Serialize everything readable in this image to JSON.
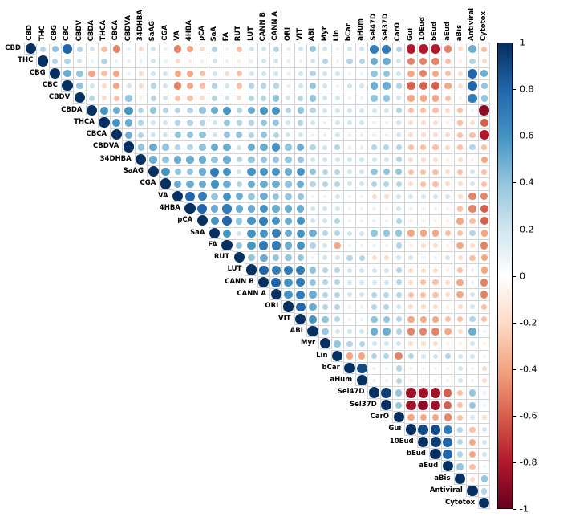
{
  "chart_data": {
    "type": "heatmap",
    "subtype": "correlation-matrix-upper-triangle",
    "title": "",
    "legend_position": "right",
    "grid": true,
    "variables": [
      "CBD",
      "THC",
      "CBG",
      "CBC",
      "CBDV",
      "CBDA",
      "THCA",
      "CBCA",
      "CBDVA",
      "34DHBA",
      "SaAG",
      "CGA",
      "VA",
      "4HBA",
      "pCA",
      "SaA",
      "FA",
      "RUT",
      "LUT",
      "CANN B",
      "CANN A",
      "ORI",
      "VIT",
      "ABI",
      "Myr",
      "Lin",
      "bCar",
      "aHum",
      "Sel47D",
      "Sel37D",
      "CarO",
      "Gui",
      "10Eud",
      "bEud",
      "aEud",
      "aBis",
      "Antiviral",
      "Cytotox"
    ],
    "matrix_upper": [
      [
        1,
        0.3,
        0.4,
        0.8,
        0.3,
        0.2,
        -0.3,
        -0.5,
        0.1,
        -0.2,
        0.2,
        0.1,
        -0.5,
        -0.4,
        -0.2,
        0.3,
        0.1,
        -0.3,
        0.2,
        0.2,
        0.3,
        0.1,
        0.2,
        0.4,
        0.2,
        0.1,
        0.2,
        0.2,
        0.7,
        0.7,
        0.3,
        -0.8,
        -0.8,
        -0.8,
        -0.5,
        -0.2,
        0.5,
        -0.3
      ],
      [
        1,
        0.3,
        0.3,
        0.2,
        0.1,
        0.3,
        0.1,
        0.1,
        0.1,
        0.2,
        0.1,
        -0.2,
        -0.1,
        0.1,
        0.2,
        0.1,
        -0.1,
        0.1,
        0.2,
        0.2,
        0.1,
        0.1,
        0.2,
        0.3,
        0.1,
        0.3,
        0.3,
        0.5,
        0.5,
        0.2,
        -0.5,
        -0.5,
        -0.5,
        -0.3,
        -0.1,
        0.3,
        -0.2
      ],
      [
        1,
        0.5,
        0.4,
        -0.4,
        -0.3,
        -0.4,
        0.1,
        -0.2,
        0.2,
        0.2,
        -0.4,
        -0.4,
        -0.3,
        0.2,
        -0.2,
        -0.3,
        0.2,
        0.2,
        0.2,
        0.1,
        0.2,
        0.3,
        0.2,
        0.2,
        0.1,
        0.1,
        0.4,
        0.4,
        0.2,
        -0.4,
        -0.5,
        -0.4,
        -0.3,
        -0.2,
        0.8,
        0.5
      ],
      [
        1,
        0.4,
        0.2,
        -0.2,
        -0.4,
        0.2,
        -0.2,
        0.3,
        0.2,
        -0.5,
        -0.4,
        -0.3,
        0.3,
        0.2,
        -0.3,
        0.3,
        0.3,
        0.3,
        0.1,
        0.2,
        0.4,
        0.2,
        0.1,
        0.2,
        0.2,
        0.5,
        0.5,
        0.3,
        -0.6,
        -0.6,
        -0.6,
        -0.4,
        -0.2,
        0.8,
        0.4
      ],
      [
        1,
        0.3,
        -0.2,
        -0.3,
        0.4,
        -0.1,
        0.3,
        0.2,
        -0.3,
        -0.3,
        -0.2,
        0.3,
        0.2,
        -0.2,
        0.3,
        0.3,
        0.4,
        0.2,
        0.3,
        0.4,
        0.2,
        0.2,
        0.1,
        0.1,
        0.4,
        0.4,
        0.2,
        -0.4,
        -0.4,
        -0.4,
        -0.3,
        -0.1,
        0.7,
        0.4
      ],
      [
        1,
        0.6,
        0.5,
        0.6,
        0.3,
        0.4,
        0.3,
        0.3,
        0.3,
        0.4,
        0.5,
        0.6,
        0.3,
        0.5,
        0.6,
        0.6,
        0.3,
        0.4,
        0.3,
        0.2,
        0.2,
        0.2,
        0.2,
        0.2,
        0.2,
        0.3,
        -0.3,
        -0.3,
        -0.3,
        -0.2,
        -0.3,
        0.1,
        -0.9
      ],
      [
        1,
        0.6,
        0.5,
        0.3,
        0.2,
        0.2,
        0.3,
        0.3,
        0.3,
        0.2,
        0.4,
        0.3,
        0.3,
        0.4,
        0.4,
        0.2,
        0.3,
        0.2,
        0.1,
        0.2,
        0.2,
        0.2,
        0.1,
        0.1,
        0.2,
        -0.2,
        -0.2,
        -0.2,
        -0.1,
        -0.3,
        -0.2,
        -0.6
      ],
      [
        1,
        0.5,
        0.3,
        0.2,
        0.2,
        0.4,
        0.4,
        0.4,
        0.2,
        0.4,
        0.4,
        0.3,
        0.4,
        0.3,
        0.2,
        0.2,
        0.1,
        0.1,
        0.2,
        0.1,
        0.1,
        0.1,
        0.1,
        0.2,
        -0.2,
        -0.2,
        -0.2,
        -0.2,
        -0.3,
        -0.3,
        -0.8
      ],
      [
        1,
        0.4,
        0.5,
        0.4,
        0.3,
        0.3,
        0.4,
        0.5,
        0.5,
        0.2,
        0.5,
        0.5,
        0.6,
        0.4,
        0.5,
        0.3,
        0.2,
        0.3,
        0.1,
        0.1,
        0.3,
        0.3,
        0.3,
        -0.3,
        -0.3,
        -0.3,
        -0.2,
        -0.3,
        0.3,
        -0.3
      ],
      [
        1,
        0.5,
        0.4,
        0.5,
        0.5,
        0.5,
        0.4,
        0.5,
        0.3,
        0.4,
        0.4,
        0.4,
        0.4,
        0.4,
        0.2,
        0.2,
        0.2,
        0.2,
        0.2,
        0.2,
        0.2,
        0.3,
        -0.2,
        -0.2,
        -0.2,
        -0.1,
        -0.2,
        -0.1,
        -0.4
      ],
      [
        1,
        0.6,
        0.4,
        0.4,
        0.5,
        0.7,
        0.6,
        0.2,
        0.6,
        0.6,
        0.6,
        0.5,
        0.6,
        0.4,
        0.3,
        0.3,
        0.2,
        0.2,
        0.4,
        0.4,
        0.4,
        -0.3,
        -0.3,
        -0.3,
        -0.2,
        -0.3,
        0.2,
        -0.3
      ],
      [
        1,
        0.5,
        0.5,
        0.5,
        0.6,
        0.5,
        0.3,
        0.5,
        0.5,
        0.5,
        0.4,
        0.5,
        0.3,
        0.3,
        0.3,
        0.2,
        0.2,
        0.3,
        0.3,
        0.3,
        -0.2,
        -0.3,
        -0.3,
        -0.2,
        -0.2,
        0.2,
        -0.3
      ],
      [
        1,
        0.8,
        0.7,
        0.4,
        0.6,
        0.5,
        0.4,
        0.5,
        0.4,
        0.4,
        0.4,
        0.1,
        0.1,
        0.2,
        0.1,
        0.1,
        -0.2,
        -0.2,
        0.2,
        0.2,
        0.2,
        0.2,
        0.2,
        -0.2,
        -0.5,
        -0.5
      ],
      [
        1,
        0.8,
        0.5,
        0.7,
        0.5,
        0.5,
        0.6,
        0.5,
        0.5,
        0.5,
        0.2,
        0.2,
        0.2,
        0.1,
        0.1,
        -0.1,
        -0.1,
        0.2,
        0.1,
        0.1,
        0.1,
        0.1,
        -0.3,
        -0.5,
        -0.6
      ],
      [
        1,
        0.6,
        0.8,
        0.4,
        0.6,
        0.7,
        0.6,
        0.5,
        0.6,
        0.2,
        0.2,
        0.3,
        0.1,
        0.1,
        0.1,
        0.1,
        0.3,
        -0.1,
        -0.1,
        -0.1,
        -0.1,
        -0.4,
        -0.3,
        -0.6
      ],
      [
        1,
        0.6,
        0.2,
        0.6,
        0.6,
        0.7,
        0.5,
        0.6,
        0.5,
        0.3,
        0.3,
        0.2,
        0.2,
        0.4,
        0.4,
        0.4,
        -0.4,
        -0.4,
        -0.4,
        -0.3,
        -0.3,
        0.3,
        -0.4
      ],
      [
        1,
        0.4,
        0.6,
        0.7,
        0.7,
        0.5,
        0.6,
        0.3,
        0.2,
        -0.4,
        0.1,
        0.1,
        0.1,
        0.1,
        0.3,
        -0.1,
        -0.2,
        -0.2,
        -0.1,
        -0.4,
        -0.2,
        -0.5
      ],
      [
        1,
        0.4,
        0.5,
        0.4,
        0.4,
        0.4,
        0.1,
        0.2,
        0.2,
        0.3,
        0.3,
        -0.2,
        -0.2,
        0.2,
        0.2,
        0.1,
        0.1,
        0.2,
        -0.2,
        -0.3,
        -0.4
      ],
      [
        1,
        0.8,
        0.7,
        0.7,
        0.7,
        0.4,
        0.3,
        0.3,
        0.2,
        0.2,
        0.2,
        0.2,
        0.3,
        -0.2,
        -0.2,
        -0.2,
        -0.1,
        -0.3,
        0.1,
        -0.4
      ],
      [
        1,
        0.8,
        0.6,
        0.7,
        0.4,
        0.3,
        0.3,
        0.2,
        0.2,
        0.2,
        0.2,
        0.3,
        -0.2,
        -0.3,
        -0.3,
        -0.2,
        -0.4,
        0.1,
        -0.5
      ],
      [
        1,
        0.6,
        0.7,
        0.5,
        0.3,
        0.3,
        0.2,
        0.2,
        0.3,
        0.3,
        0.3,
        -0.3,
        -0.3,
        -0.3,
        -0.2,
        -0.4,
        0.2,
        -0.5
      ],
      [
        1,
        0.8,
        0.5,
        0.3,
        0.3,
        0.1,
        0.1,
        0.3,
        0.3,
        0.2,
        -0.2,
        -0.2,
        -0.2,
        -0.1,
        -0.2,
        0.2,
        -0.3
      ],
      [
        1,
        0.6,
        0.4,
        0.3,
        0.1,
        0.1,
        0.4,
        0.4,
        0.3,
        -0.4,
        -0.4,
        -0.4,
        -0.3,
        -0.3,
        0.3,
        -0.3
      ],
      [
        1,
        0.4,
        0.2,
        0.2,
        0.2,
        0.5,
        0.5,
        0.3,
        -0.5,
        -0.5,
        -0.5,
        -0.4,
        -0.2,
        0.5,
        0.1
      ],
      [
        1,
        0.4,
        0.3,
        0.3,
        0.2,
        0.2,
        0.2,
        -0.2,
        -0.2,
        -0.2,
        -0.1,
        -0.1,
        0.2,
        -0.1
      ],
      [
        1,
        -0.4,
        -0.4,
        0.3,
        0.3,
        -0.5,
        0.3,
        0.2,
        0.2,
        0.3,
        0.2,
        0.2,
        0.1
      ],
      [
        1,
        0.9,
        0.1,
        0.1,
        0.3,
        -0.1,
        -0.1,
        -0.1,
        0.1,
        0.2,
        0.1,
        -0.2
      ],
      [
        1,
        0.1,
        0.1,
        0.3,
        -0.1,
        -0.1,
        -0.1,
        0.1,
        0.2,
        0.1,
        -0.2
      ],
      [
        1,
        0.95,
        0.4,
        -0.85,
        -0.85,
        -0.85,
        -0.6,
        -0.3,
        0.4,
        0.1
      ],
      [
        1,
        0.4,
        -0.85,
        -0.9,
        -0.85,
        -0.6,
        -0.3,
        0.4,
        0.1
      ],
      [
        1,
        -0.4,
        -0.4,
        -0.4,
        -0.5,
        -0.3,
        0.2,
        -0.2
      ],
      [
        1,
        0.9,
        0.9,
        0.7,
        0.3,
        -0.3,
        0.2
      ],
      [
        1,
        0.95,
        0.8,
        0.3,
        -0.4,
        0.2
      ],
      [
        1,
        0.8,
        0.3,
        -0.4,
        0.2
      ],
      [
        1,
        0.4,
        -0.3,
        0.1
      ],
      [
        1,
        -0.2,
        0.4
      ],
      [
        1,
        0.3
      ],
      [
        1
      ]
    ],
    "value_range": [
      -1,
      1
    ],
    "colorbar": {
      "ticks": [
        "1",
        "0.8",
        "0.6",
        "0.4",
        "0.2",
        "0",
        "-0.2",
        "-0.4",
        "-0.6",
        "-0.8",
        "-1"
      ],
      "min": -1,
      "max": 1
    },
    "palette": {
      "values": [
        -1,
        -0.8,
        -0.6,
        -0.4,
        -0.2,
        0,
        0.2,
        0.4,
        0.6,
        0.8,
        1
      ],
      "colors": [
        "#67001F",
        "#B2182B",
        "#D6604D",
        "#F4A582",
        "#FDDBC7",
        "#FFFFFF",
        "#D1E5F0",
        "#92C5DE",
        "#4393C3",
        "#2166AC",
        "#053061"
      ]
    }
  }
}
